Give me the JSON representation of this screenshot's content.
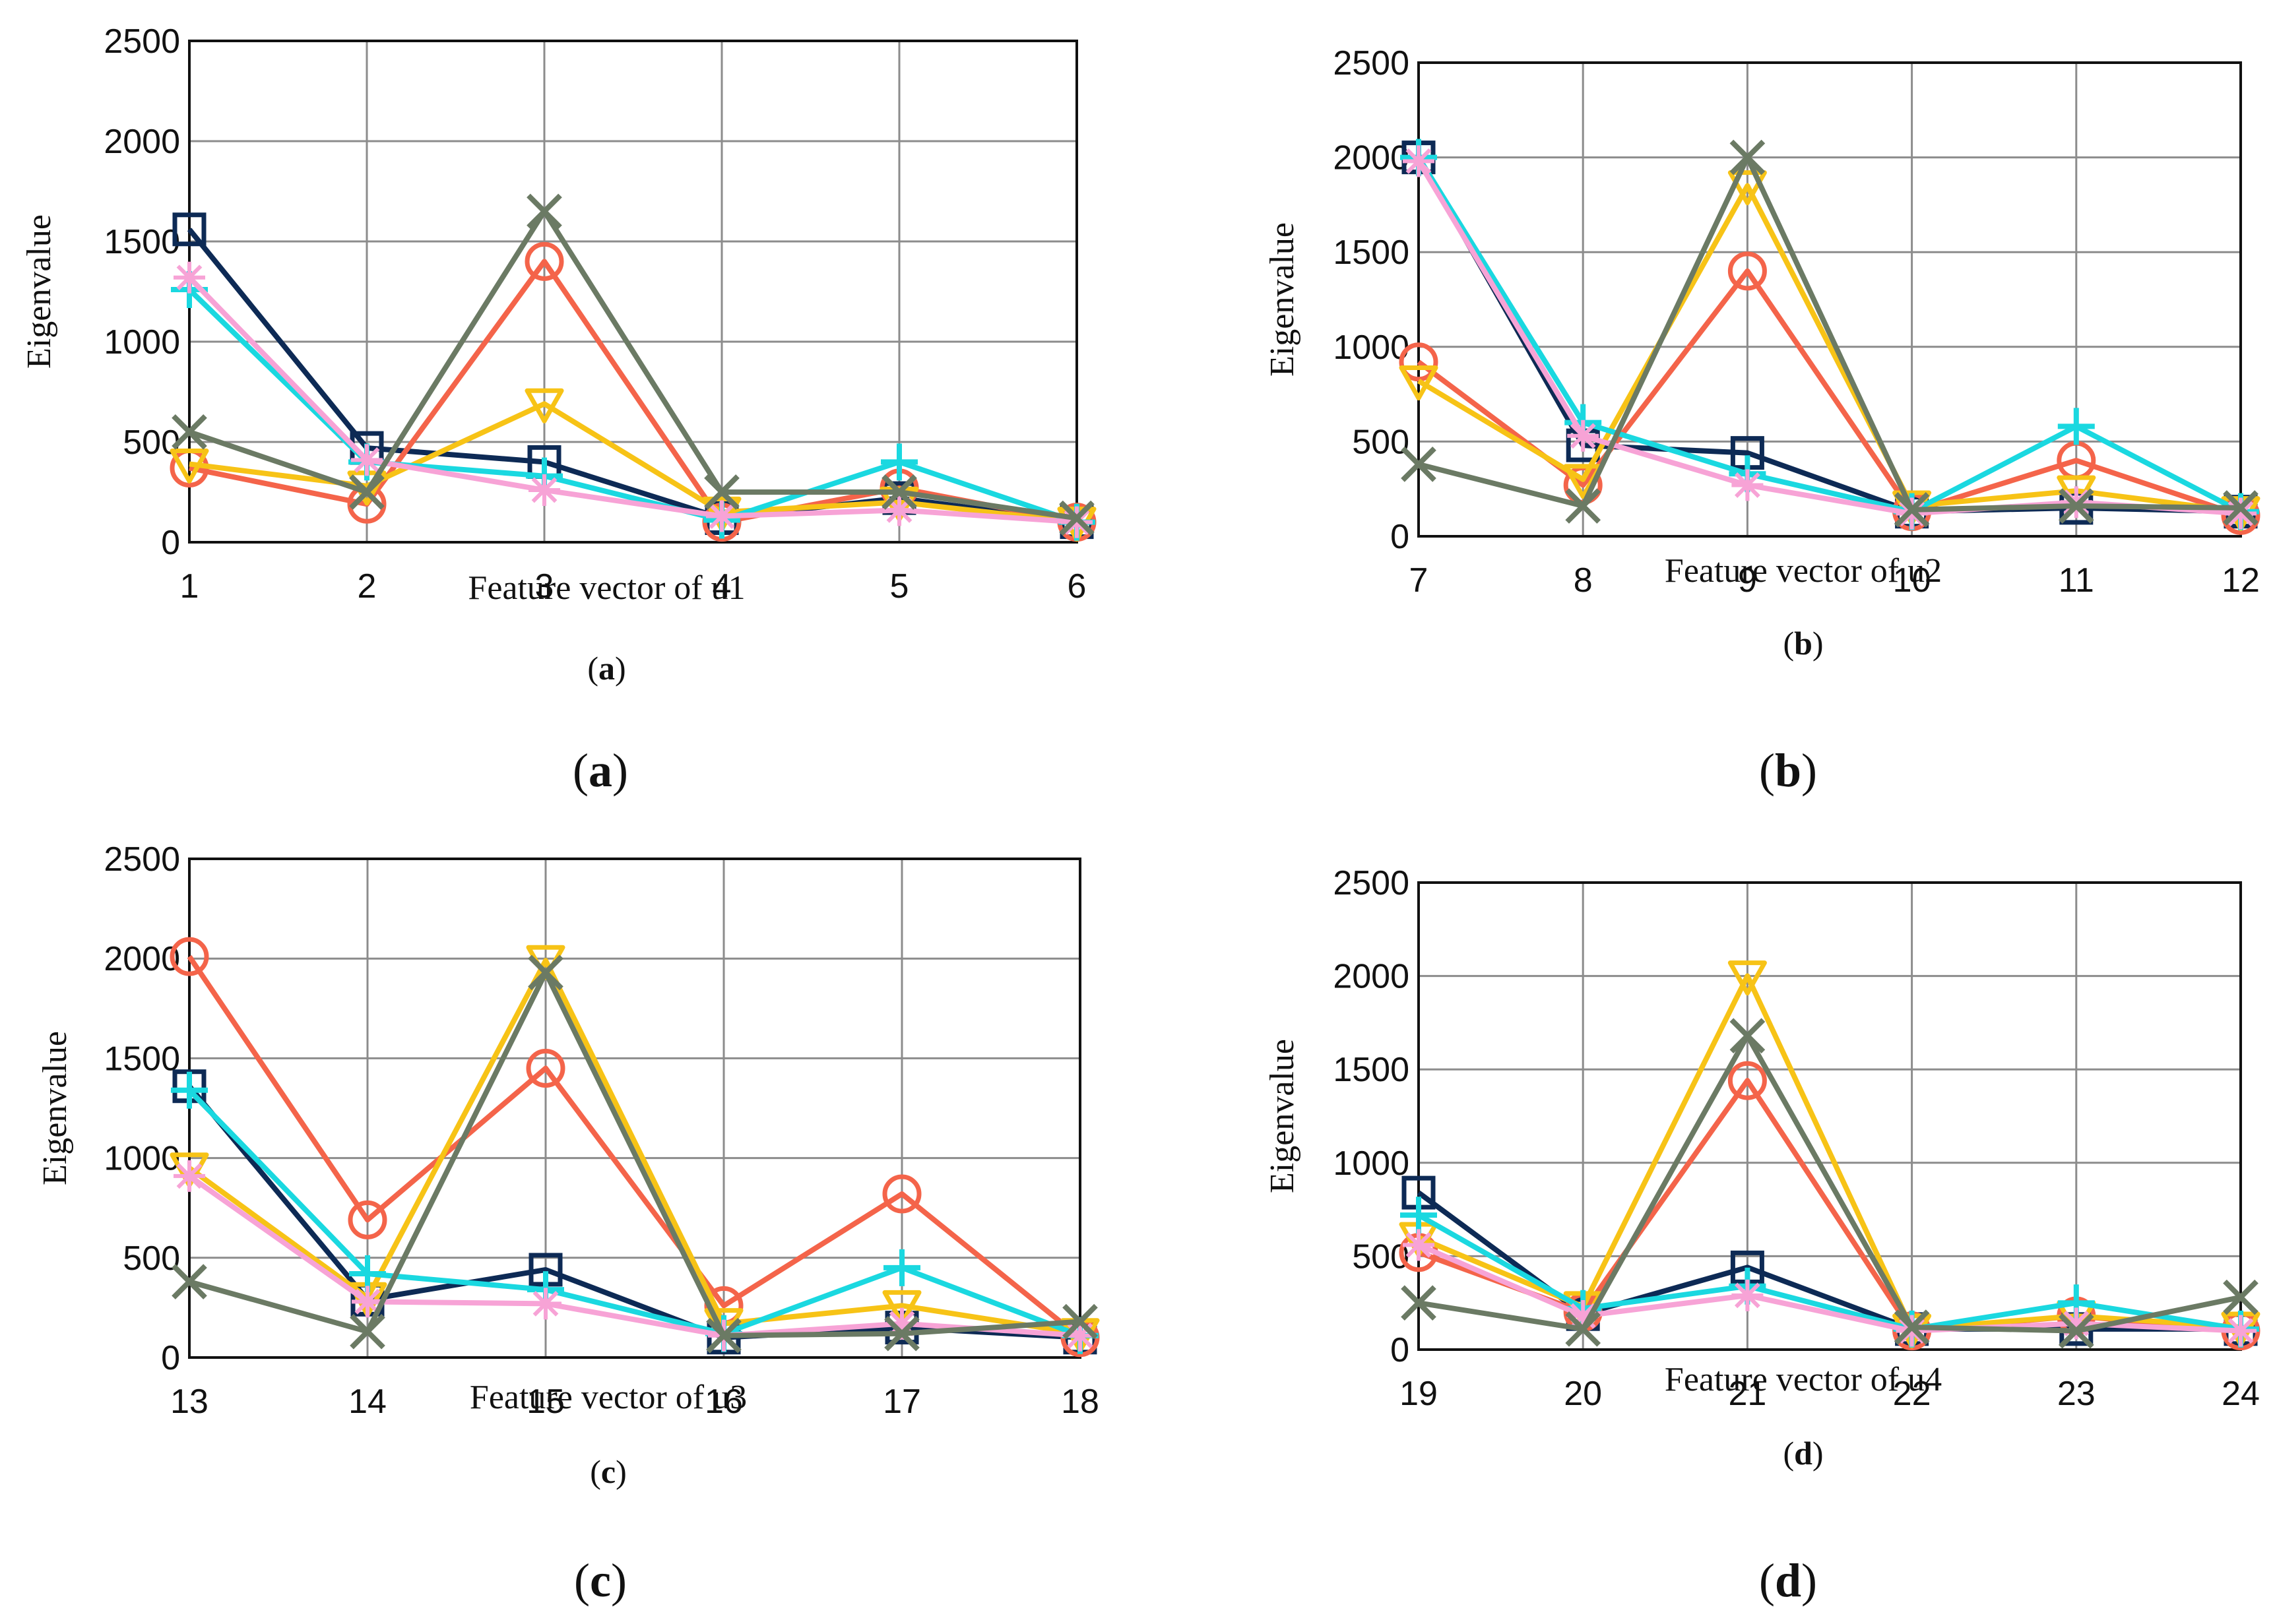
{
  "chart_data": [
    {
      "type": "line",
      "panel": "a",
      "xlabel": "Feature vector of u1",
      "ylabel": "Eigenvalue",
      "x": [
        1,
        2,
        3,
        4,
        5,
        6
      ],
      "xlim": [
        1,
        6
      ],
      "ylim": [
        0,
        2500
      ],
      "yticks": [
        0,
        500,
        1000,
        1500,
        2000,
        2500
      ],
      "grid": true,
      "caption_inner": "a",
      "caption_outer": "a",
      "series": [
        {
          "name": "series-square",
          "marker": "square",
          "color": "#0d2a55",
          "values": [
            1560,
            470,
            400,
            120,
            220,
            100
          ]
        },
        {
          "name": "series-circle",
          "marker": "circle",
          "color": "#f4644a",
          "values": [
            370,
            190,
            1400,
            100,
            270,
            100
          ]
        },
        {
          "name": "series-triangle",
          "marker": "triangle-down",
          "color": "#f7c316",
          "values": [
            390,
            280,
            690,
            150,
            200,
            100
          ]
        },
        {
          "name": "series-plus",
          "marker": "plus",
          "color": "#1ad8e0",
          "values": [
            1260,
            400,
            330,
            110,
            400,
            100
          ]
        },
        {
          "name": "series-star",
          "marker": "star",
          "color": "#f7a3d6",
          "values": [
            1320,
            410,
            260,
            130,
            160,
            100
          ]
        },
        {
          "name": "series-x",
          "marker": "x",
          "color": "#6b7a64",
          "values": [
            550,
            250,
            1650,
            250,
            250,
            120
          ]
        }
      ]
    },
    {
      "type": "line",
      "panel": "b",
      "xlabel": "Feature vector of u2",
      "ylabel": "Eigenvalue",
      "x": [
        7,
        8,
        9,
        10,
        11,
        12
      ],
      "xlim": [
        7,
        12
      ],
      "ylim": [
        0,
        2500
      ],
      "yticks": [
        0,
        500,
        1000,
        1500,
        2000,
        2500
      ],
      "grid": true,
      "caption_inner": "b",
      "caption_outer": "b",
      "series": [
        {
          "name": "series-square",
          "marker": "square",
          "color": "#0d2a55",
          "values": [
            2000,
            480,
            440,
            130,
            150,
            130
          ]
        },
        {
          "name": "series-circle",
          "marker": "circle",
          "color": "#f4644a",
          "values": [
            920,
            270,
            1400,
            130,
            400,
            110
          ]
        },
        {
          "name": "series-triangle",
          "marker": "triangle-down",
          "color": "#f7c316",
          "values": [
            820,
            300,
            1850,
            160,
            240,
            130
          ]
        },
        {
          "name": "series-plus",
          "marker": "plus",
          "color": "#1ad8e0",
          "values": [
            2000,
            600,
            330,
            130,
            580,
            130
          ]
        },
        {
          "name": "series-star",
          "marker": "star",
          "color": "#f7a3d6",
          "values": [
            1980,
            530,
            270,
            120,
            180,
            120
          ]
        },
        {
          "name": "series-x",
          "marker": "x",
          "color": "#6b7a64",
          "values": [
            380,
            160,
            2000,
            140,
            160,
            150
          ]
        }
      ]
    },
    {
      "type": "line",
      "panel": "c",
      "xlabel": "Feature vector of u3",
      "ylabel": "Eigenvalue",
      "x": [
        13,
        14,
        15,
        16,
        17,
        18
      ],
      "xlim": [
        13,
        18
      ],
      "ylim": [
        0,
        2500
      ],
      "yticks": [
        0,
        500,
        1000,
        1500,
        2000,
        2500
      ],
      "grid": true,
      "caption_inner": "c",
      "caption_outer": "c",
      "series": [
        {
          "name": "series-square",
          "marker": "square",
          "color": "#0d2a55",
          "values": [
            1360,
            290,
            440,
            100,
            150,
            100
          ]
        },
        {
          "name": "series-circle",
          "marker": "circle",
          "color": "#f4644a",
          "values": [
            2010,
            690,
            1450,
            260,
            820,
            100
          ]
        },
        {
          "name": "series-triangle",
          "marker": "triangle-down",
          "color": "#f7c316",
          "values": [
            950,
            300,
            1990,
            170,
            260,
            120
          ]
        },
        {
          "name": "series-plus",
          "marker": "plus",
          "color": "#1ad8e0",
          "values": [
            1340,
            420,
            340,
            120,
            450,
            110
          ]
        },
        {
          "name": "series-star",
          "marker": "star",
          "color": "#f7a3d6",
          "values": [
            910,
            280,
            270,
            110,
            170,
            110
          ]
        },
        {
          "name": "series-x",
          "marker": "x",
          "color": "#6b7a64",
          "values": [
            380,
            130,
            1930,
            110,
            120,
            180
          ]
        }
      ]
    },
    {
      "type": "line",
      "panel": "d",
      "xlabel": "Feature vector of u4",
      "ylabel": "Eigenvalue",
      "x": [
        19,
        20,
        21,
        22,
        23,
        24
      ],
      "xlim": [
        19,
        24
      ],
      "ylim": [
        0,
        2500
      ],
      "yticks": [
        0,
        500,
        1000,
        1500,
        2000,
        2500
      ],
      "grid": true,
      "caption_inner": "d",
      "caption_outer": "d",
      "series": [
        {
          "name": "series-square",
          "marker": "square",
          "color": "#0d2a55",
          "values": [
            840,
            190,
            440,
            110,
            110,
            110
          ]
        },
        {
          "name": "series-circle",
          "marker": "circle",
          "color": "#f4644a",
          "values": [
            520,
            200,
            1440,
            100,
            180,
            100
          ]
        },
        {
          "name": "series-triangle",
          "marker": "triangle-down",
          "color": "#f7c316",
          "values": [
            600,
            230,
            2000,
            110,
            180,
            120
          ]
        },
        {
          "name": "series-plus",
          "marker": "plus",
          "color": "#1ad8e0",
          "values": [
            720,
            220,
            340,
            110,
            250,
            110
          ]
        },
        {
          "name": "series-star",
          "marker": "star",
          "color": "#f7a3d6",
          "values": [
            560,
            180,
            290,
            100,
            140,
            100
          ]
        },
        {
          "name": "series-x",
          "marker": "x",
          "color": "#6b7a64",
          "values": [
            250,
            110,
            1680,
            120,
            100,
            280
          ]
        }
      ]
    }
  ]
}
